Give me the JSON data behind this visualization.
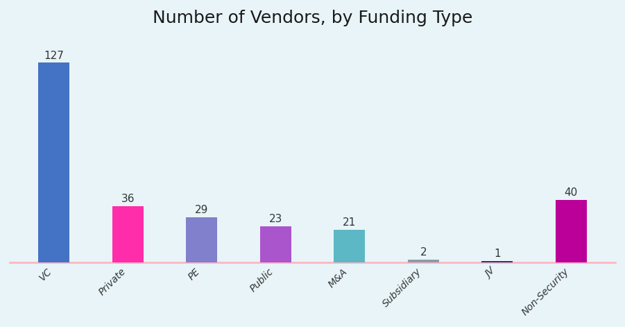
{
  "categories": [
    "VC",
    "Private",
    "PE",
    "Public",
    "M&A",
    "Subsidiary",
    "JV",
    "Non-Security"
  ],
  "values": [
    127,
    36,
    29,
    23,
    21,
    2,
    1,
    40
  ],
  "bar_colors": [
    "#4472C4",
    "#FF2DAA",
    "#8080CC",
    "#AA55CC",
    "#5BB8C4",
    "#8C9BAB",
    "#2A3580",
    "#BB0099"
  ],
  "title": "Number of Vendors, by Funding Type",
  "title_fontsize": 18,
  "label_fontsize": 11,
  "tick_fontsize": 10,
  "background_color": "#E8F4F8",
  "baseline_color": "#FFB6C1",
  "ylim": [
    0,
    145
  ],
  "bar_width": 0.42,
  "figsize": [
    9.01,
    4.71
  ],
  "dpi": 100
}
